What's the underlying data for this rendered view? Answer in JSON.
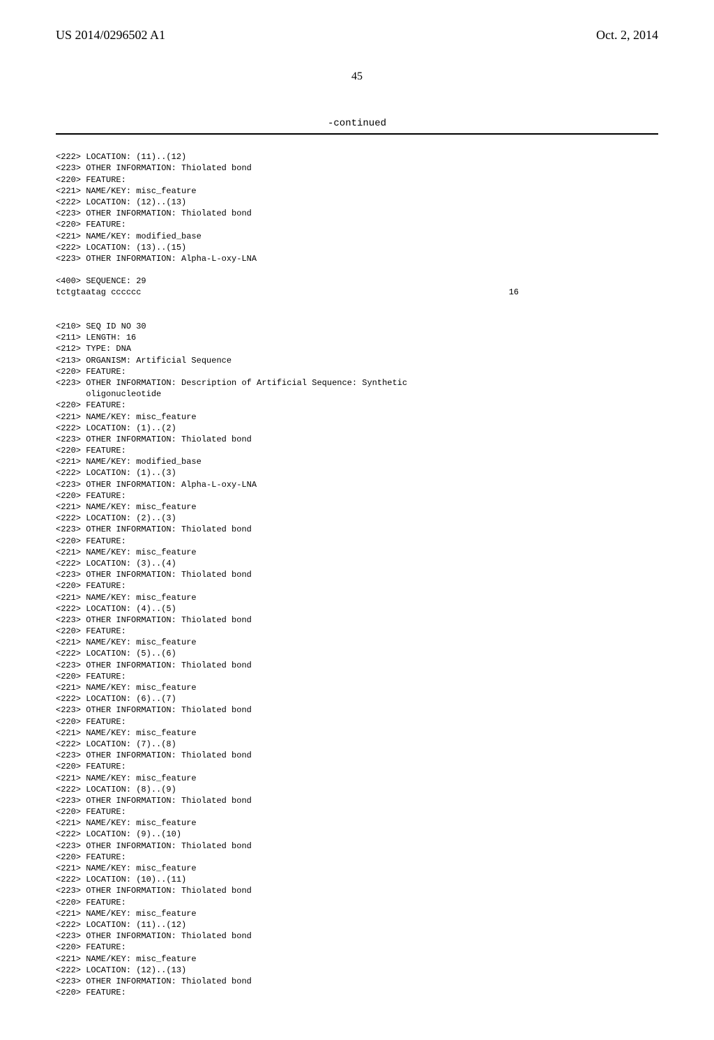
{
  "header": {
    "pub_number": "US 2014/0296502 A1",
    "pub_date": "Oct. 2, 2014"
  },
  "page_number": "45",
  "continued_label": "-continued",
  "block1": {
    "l1": "<222> LOCATION: (11)..(12)",
    "l2": "<223> OTHER INFORMATION: Thiolated bond",
    "l3": "<220> FEATURE:",
    "l4": "<221> NAME/KEY: misc_feature",
    "l5": "<222> LOCATION: (12)..(13)",
    "l6": "<223> OTHER INFORMATION: Thiolated bond",
    "l7": "<220> FEATURE:",
    "l8": "<221> NAME/KEY: modified_base",
    "l9": "<222> LOCATION: (13)..(15)",
    "l10": "<223> OTHER INFORMATION: Alpha-L-oxy-LNA"
  },
  "sequence29": {
    "label": "<400> SEQUENCE: 29",
    "seq": "tctgtaatag cccccc",
    "len": "16"
  },
  "block2": {
    "l1": "<210> SEQ ID NO 30",
    "l2": "<211> LENGTH: 16",
    "l3": "<212> TYPE: DNA",
    "l4": "<213> ORGANISM: Artificial Sequence",
    "l5": "<220> FEATURE:",
    "l6": "<223> OTHER INFORMATION: Description of Artificial Sequence: Synthetic",
    "l7": "      oligonucleotide",
    "l8": "<220> FEATURE:",
    "l9": "<221> NAME/KEY: misc_feature",
    "l10": "<222> LOCATION: (1)..(2)",
    "l11": "<223> OTHER INFORMATION: Thiolated bond",
    "l12": "<220> FEATURE:",
    "l13": "<221> NAME/KEY: modified_base",
    "l14": "<222> LOCATION: (1)..(3)",
    "l15": "<223> OTHER INFORMATION: Alpha-L-oxy-LNA",
    "l16": "<220> FEATURE:",
    "l17": "<221> NAME/KEY: misc_feature",
    "l18": "<222> LOCATION: (2)..(3)",
    "l19": "<223> OTHER INFORMATION: Thiolated bond",
    "l20": "<220> FEATURE:",
    "l21": "<221> NAME/KEY: misc_feature",
    "l22": "<222> LOCATION: (3)..(4)",
    "l23": "<223> OTHER INFORMATION: Thiolated bond",
    "l24": "<220> FEATURE:",
    "l25": "<221> NAME/KEY: misc_feature",
    "l26": "<222> LOCATION: (4)..(5)",
    "l27": "<223> OTHER INFORMATION: Thiolated bond",
    "l28": "<220> FEATURE:",
    "l29": "<221> NAME/KEY: misc_feature",
    "l30": "<222> LOCATION: (5)..(6)",
    "l31": "<223> OTHER INFORMATION: Thiolated bond",
    "l32": "<220> FEATURE:",
    "l33": "<221> NAME/KEY: misc_feature",
    "l34": "<222> LOCATION: (6)..(7)",
    "l35": "<223> OTHER INFORMATION: Thiolated bond",
    "l36": "<220> FEATURE:",
    "l37": "<221> NAME/KEY: misc_feature",
    "l38": "<222> LOCATION: (7)..(8)",
    "l39": "<223> OTHER INFORMATION: Thiolated bond",
    "l40": "<220> FEATURE:",
    "l41": "<221> NAME/KEY: misc_feature",
    "l42": "<222> LOCATION: (8)..(9)",
    "l43": "<223> OTHER INFORMATION: Thiolated bond",
    "l44": "<220> FEATURE:",
    "l45": "<221> NAME/KEY: misc_feature",
    "l46": "<222> LOCATION: (9)..(10)",
    "l47": "<223> OTHER INFORMATION: Thiolated bond",
    "l48": "<220> FEATURE:",
    "l49": "<221> NAME/KEY: misc_feature",
    "l50": "<222> LOCATION: (10)..(11)",
    "l51": "<223> OTHER INFORMATION: Thiolated bond",
    "l52": "<220> FEATURE:",
    "l53": "<221> NAME/KEY: misc_feature",
    "l54": "<222> LOCATION: (11)..(12)",
    "l55": "<223> OTHER INFORMATION: Thiolated bond",
    "l56": "<220> FEATURE:",
    "l57": "<221> NAME/KEY: misc_feature",
    "l58": "<222> LOCATION: (12)..(13)",
    "l59": "<223> OTHER INFORMATION: Thiolated bond",
    "l60": "<220> FEATURE:"
  }
}
